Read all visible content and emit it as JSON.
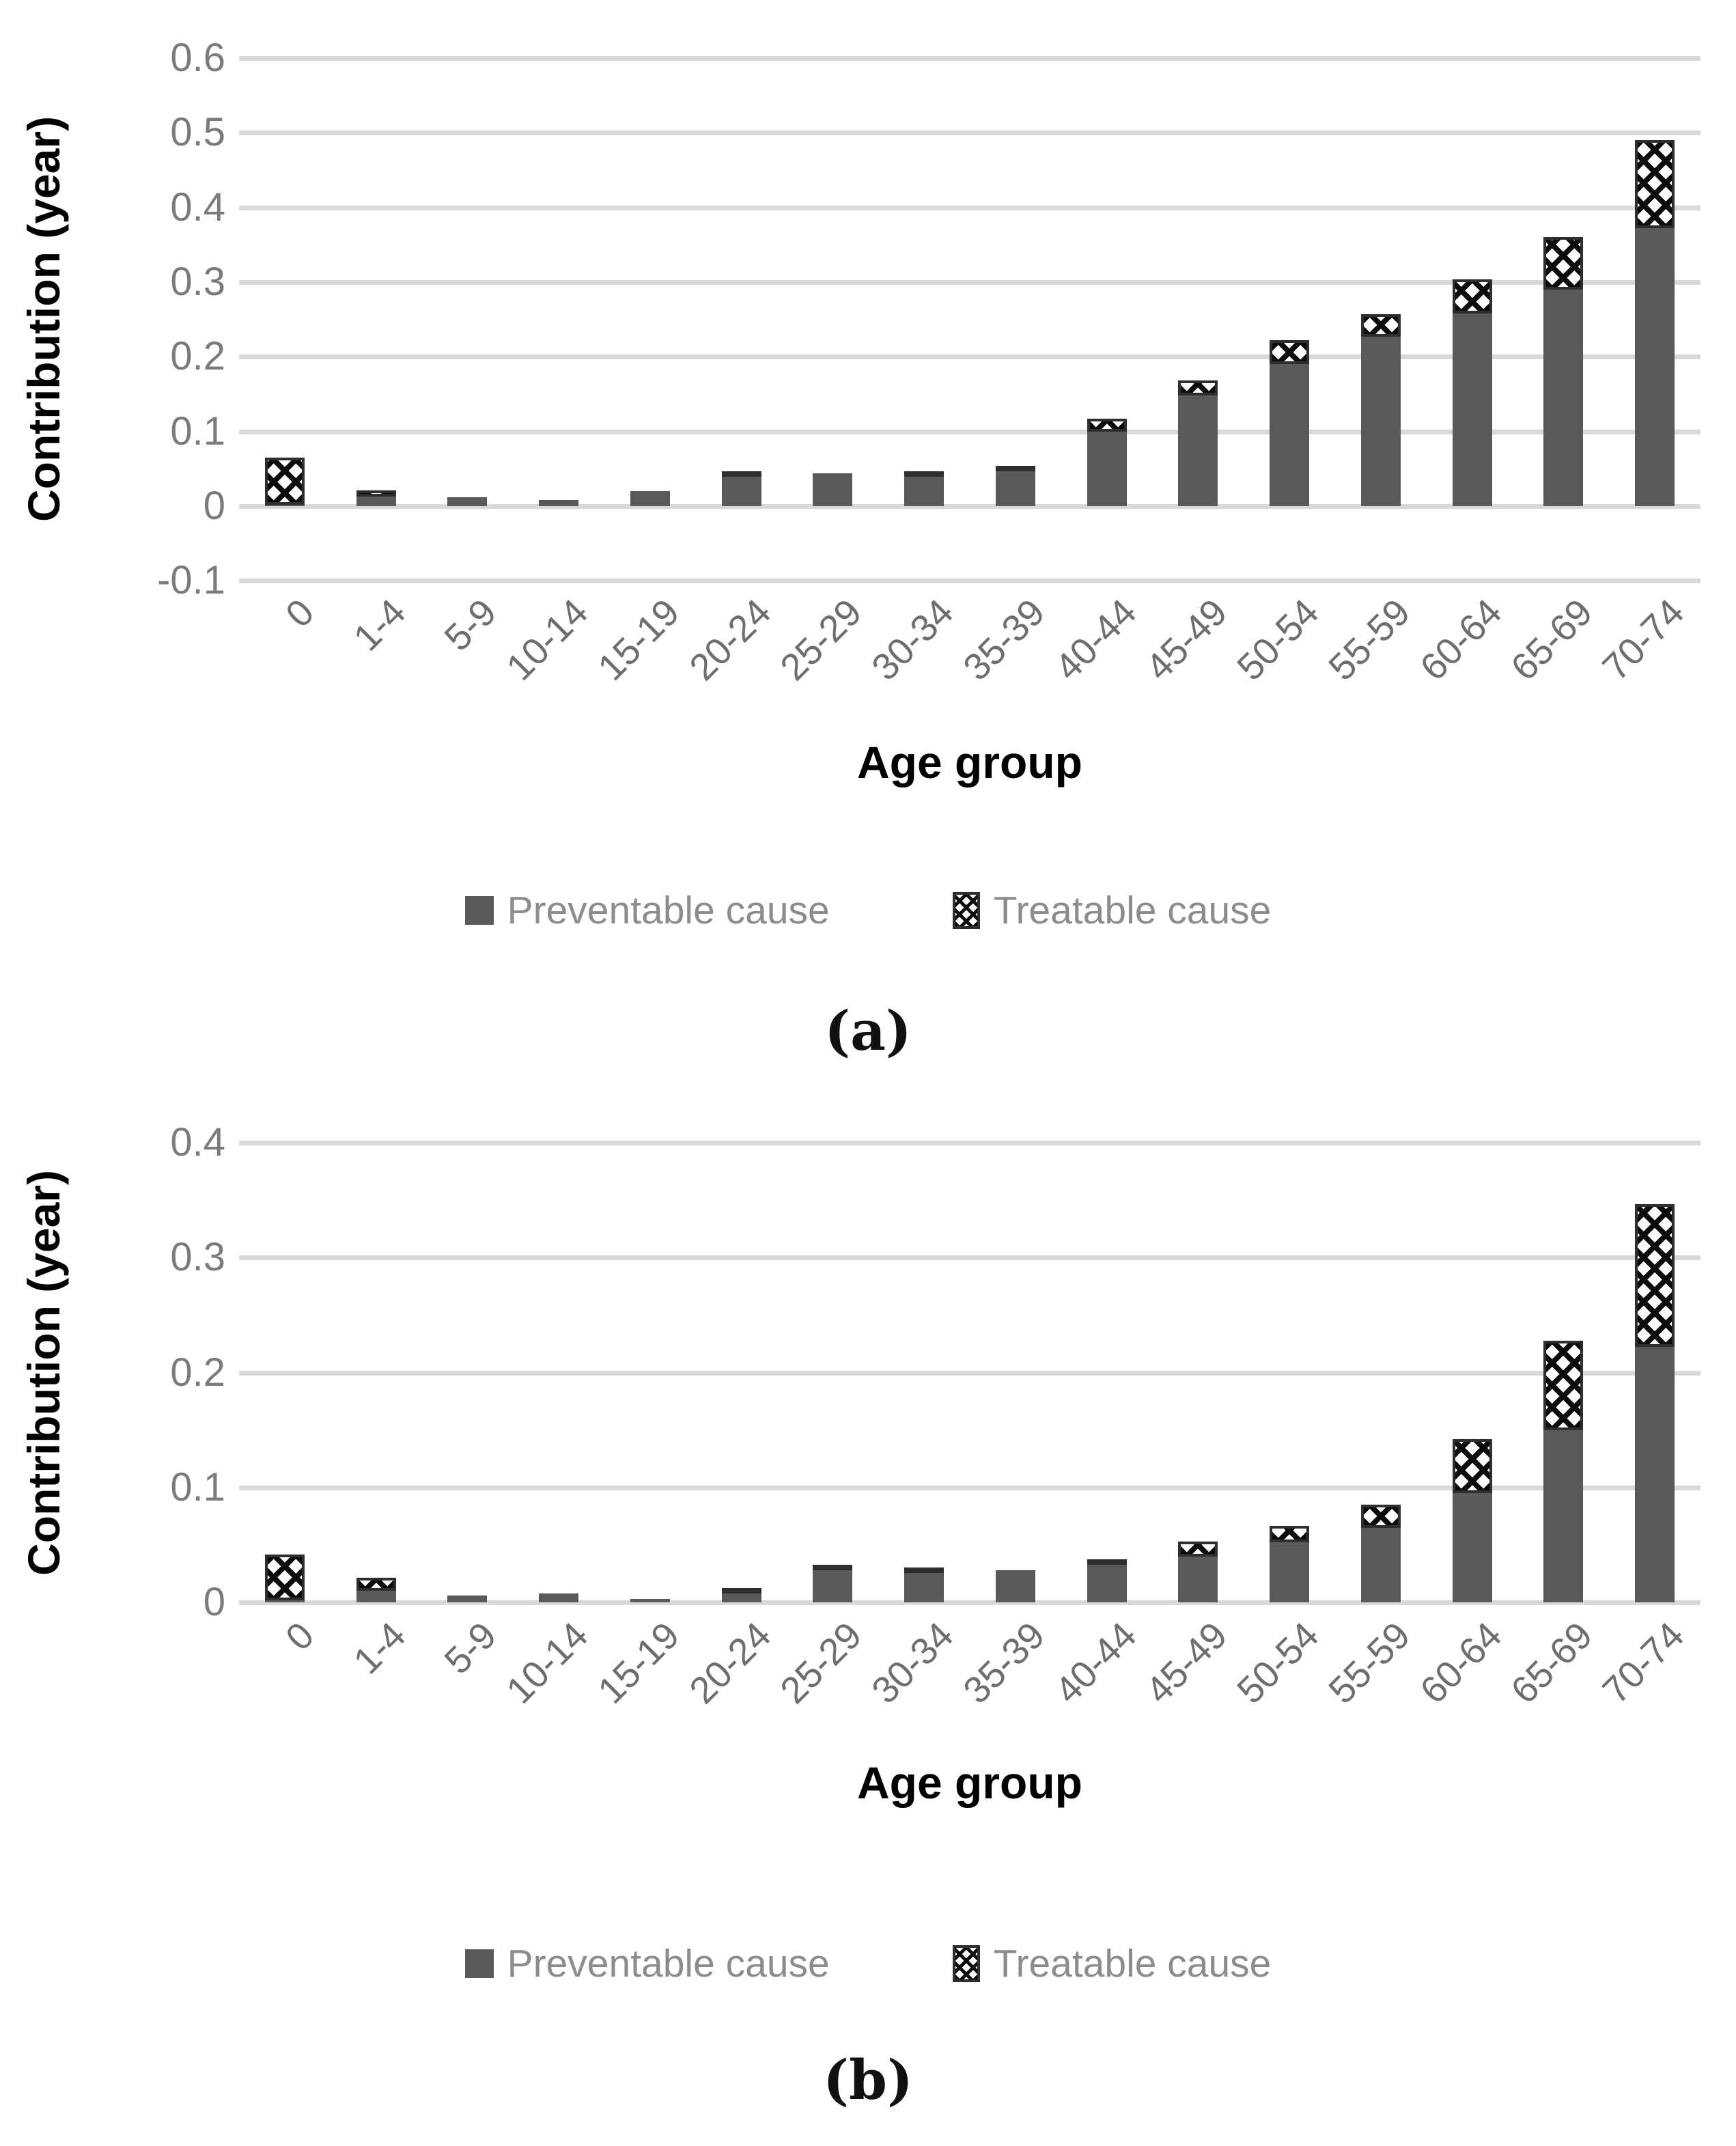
{
  "chart_data": [
    {
      "type": "bar",
      "stacked": true,
      "panel_label": "(a)",
      "xlabel": "Age group",
      "ylabel": "Contribution (year)",
      "categories": [
        "0",
        "1-4",
        "5-9",
        "10-14",
        "15-19",
        "20-24",
        "25-29",
        "30-34",
        "35-39",
        "40-44",
        "45-49",
        "50-54",
        "55-59",
        "60-64",
        "65-69",
        "70-74"
      ],
      "series": [
        {
          "name": "Preventable cause",
          "values": [
            0.002,
            0.013,
            0.012,
            0.008,
            0.02,
            0.042,
            0.044,
            0.042,
            0.049,
            0.1,
            0.148,
            0.19,
            0.227,
            0.258,
            0.29,
            0.372
          ]
        },
        {
          "name": "Treatable cause",
          "values": [
            0.063,
            0.008,
            0.0,
            0.0,
            0.002,
            0.005,
            0.0,
            0.005,
            0.005,
            0.017,
            0.02,
            0.032,
            0.03,
            0.046,
            0.07,
            0.118
          ]
        }
      ],
      "y_ticks": [
        "0.6",
        "0.5",
        "0.4",
        "0.3",
        "0.2",
        "0.1",
        "0",
        "-0.1"
      ],
      "ylim": [
        -0.1,
        0.6
      ],
      "grid": "horizontal",
      "legend_position": "bottom",
      "colors": {
        "preventable_fill": "#595959",
        "treatable_pattern": "white with black diagonal cross-hatch",
        "gridline": "#d9d9d9",
        "tick_text": "#7b7b7b",
        "axis_title_text": "#000000",
        "legend_text": "#8c8c8c"
      }
    },
    {
      "type": "bar",
      "stacked": true,
      "panel_label": "(b)",
      "xlabel": "Age group",
      "ylabel": "Contribution (year)",
      "categories": [
        "0",
        "1-4",
        "5-9",
        "10-14",
        "15-19",
        "20-24",
        "25-29",
        "30-34",
        "35-39",
        "40-44",
        "45-49",
        "50-54",
        "55-59",
        "60-64",
        "65-69",
        "70-74"
      ],
      "series": [
        {
          "name": "Preventable cause",
          "values": [
            0.002,
            0.01,
            0.006,
            0.008,
            0.003,
            0.008,
            0.031,
            0.026,
            0.028,
            0.033,
            0.04,
            0.052,
            0.065,
            0.095,
            0.15,
            0.222
          ]
        },
        {
          "name": "Treatable cause",
          "values": [
            0.04,
            0.011,
            0.0,
            0.0,
            0.0,
            0.005,
            0.002,
            0.004,
            0.0,
            0.004,
            0.013,
            0.014,
            0.02,
            0.047,
            0.078,
            0.124
          ]
        }
      ],
      "y_ticks": [
        "0.4",
        "0.3",
        "0.2",
        "0.1",
        "0"
      ],
      "ylim": [
        0,
        0.4
      ],
      "grid": "horizontal",
      "legend_position": "bottom",
      "colors": {
        "preventable_fill": "#595959",
        "treatable_pattern": "white with black diagonal cross-hatch",
        "gridline": "#d9d9d9",
        "tick_text": "#7b7b7b",
        "axis_title_text": "#000000",
        "legend_text": "#8c8c8c"
      }
    }
  ]
}
